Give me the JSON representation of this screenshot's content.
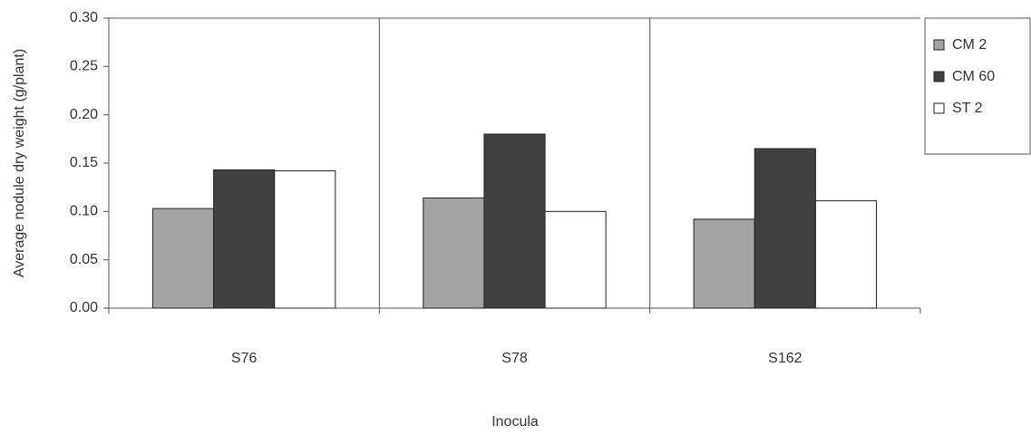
{
  "chart_data": {
    "type": "bar",
    "x_label": "Inocula",
    "y_label": "Average nodule dry weight (g/plant)",
    "categories": [
      "S76",
      "S78",
      "S162"
    ],
    "series": [
      {
        "name": "CM 2",
        "color": "#a3a3a3",
        "values": [
          0.103,
          0.114,
          0.092
        ]
      },
      {
        "name": "CM 60",
        "color": "#404040",
        "values": [
          0.143,
          0.18,
          0.165
        ]
      },
      {
        "name": "ST 2",
        "color": "#ffffff",
        "values": [
          0.142,
          0.1,
          0.111
        ]
      }
    ],
    "ylim": [
      0,
      0.3
    ],
    "yticks": [
      {
        "value": 0,
        "label": "0.00"
      },
      0.05,
      {
        "value": 0.1,
        "label": "0.10"
      },
      0.15,
      {
        "value": 0.2,
        "label": "0.20"
      },
      0.25,
      {
        "value": 0.3,
        "label": "0.30"
      }
    ],
    "legend": "right"
  }
}
